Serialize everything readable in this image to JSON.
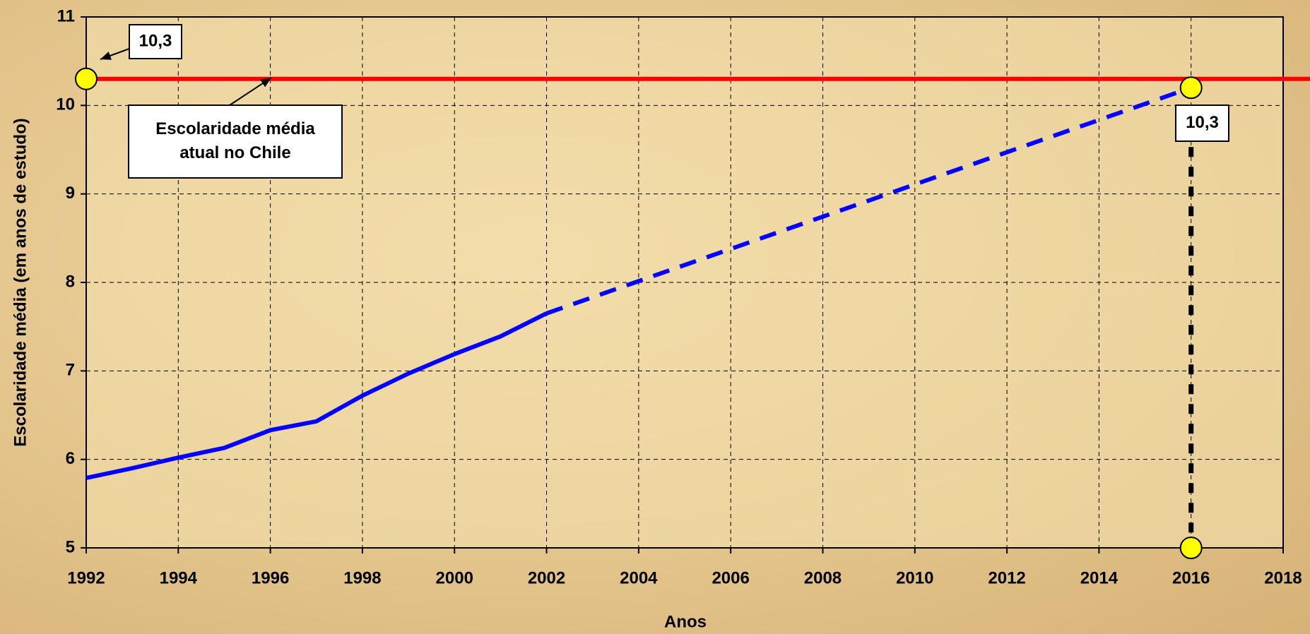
{
  "chart_data": {
    "type": "line",
    "x_label": "Anos",
    "y_label": "Escolaridade média (em anos de estudo)",
    "xlim": [
      1992,
      2018
    ],
    "xticks": [
      1992,
      1994,
      1996,
      1998,
      2000,
      2002,
      2004,
      2006,
      2008,
      2010,
      2012,
      2014,
      2016,
      2018
    ],
    "ylim": [
      5,
      11
    ],
    "yticks": [
      5,
      6,
      7,
      8,
      9,
      10,
      11
    ],
    "grid": true,
    "series": [
      {
        "color": "#0000ff",
        "style": "solid",
        "x": [
          1992,
          1993,
          1994,
          1995,
          1996,
          1997,
          1998,
          1999,
          2000,
          2001,
          2002
        ],
        "values": [
          5.79,
          5.9,
          6.02,
          6.13,
          6.33,
          6.43,
          6.72,
          6.97,
          7.19,
          7.39,
          7.65
        ]
      },
      {
        "color": "#0000ff",
        "style": "dashed",
        "x": [
          2002,
          2016
        ],
        "values": [
          7.65,
          10.2
        ]
      }
    ],
    "reference_line": {
      "value": 10.3,
      "color": "#ff0000"
    },
    "markers": [
      {
        "x": 1992,
        "y": 10.3
      },
      {
        "x": 2016,
        "y": 10.2
      },
      {
        "x": 2016,
        "y": 5
      }
    ],
    "marker_color": "#ffff00",
    "annotations": [
      {
        "lines": [
          "10,3"
        ]
      },
      {
        "lines": [
          "Escolaridade média",
          "atual no Chile"
        ]
      },
      {
        "lines": [
          "10,3"
        ]
      }
    ]
  }
}
